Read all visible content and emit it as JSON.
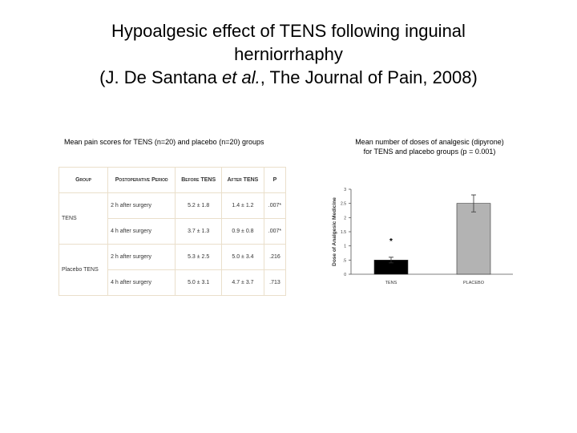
{
  "title_lines": [
    "Hypoalgesic effect of TENS following inguinal",
    "herniorrhaphy"
  ],
  "citation": {
    "before": "(J. De Santana ",
    "italic": "et al.",
    "after": ", The Journal of Pain, 2008)"
  },
  "table": {
    "caption": "Mean pain scores for TENS (n=20) and placebo (n=20) groups",
    "header": [
      "Group",
      "Postoperative Period",
      "Before TENS",
      "After TENS",
      "P"
    ],
    "rows": [
      [
        "TENS",
        "2 h after surgery",
        "5.2 ± 1.8",
        "1.4 ± 1.2",
        ".007*"
      ],
      [
        null,
        "4 h after surgery",
        "3.7 ± 1.3",
        "0.9 ± 0.8",
        ".007*"
      ],
      [
        "Placebo TENS",
        "2 h after surgery",
        "5.3 ± 2.5",
        "5.0 ± 3.4",
        ".216"
      ],
      [
        null,
        "4 h after surgery",
        "5.0 ± 3.1",
        "4.7 ± 3.7",
        ".713"
      ]
    ]
  },
  "chart_data": {
    "type": "bar",
    "caption_lines": [
      "Mean number of doses of analgesic (dipyrone)",
      "for TENS and placebo groups (p = 0.001)"
    ],
    "y_label": "Dose of Analgesic Medicine",
    "categories": [
      "TENS",
      "PLACEBO"
    ],
    "values": [
      0.5,
      2.5
    ],
    "errors": [
      0.1,
      0.3
    ],
    "colors": [
      "#000000",
      "#b3b3b3"
    ],
    "annotation": "*",
    "ylim": [
      0,
      3
    ],
    "yticks": [
      0,
      {
        "value": 0.5,
        "label": ".5"
      },
      1,
      1.5,
      2,
      2.5,
      3
    ]
  }
}
